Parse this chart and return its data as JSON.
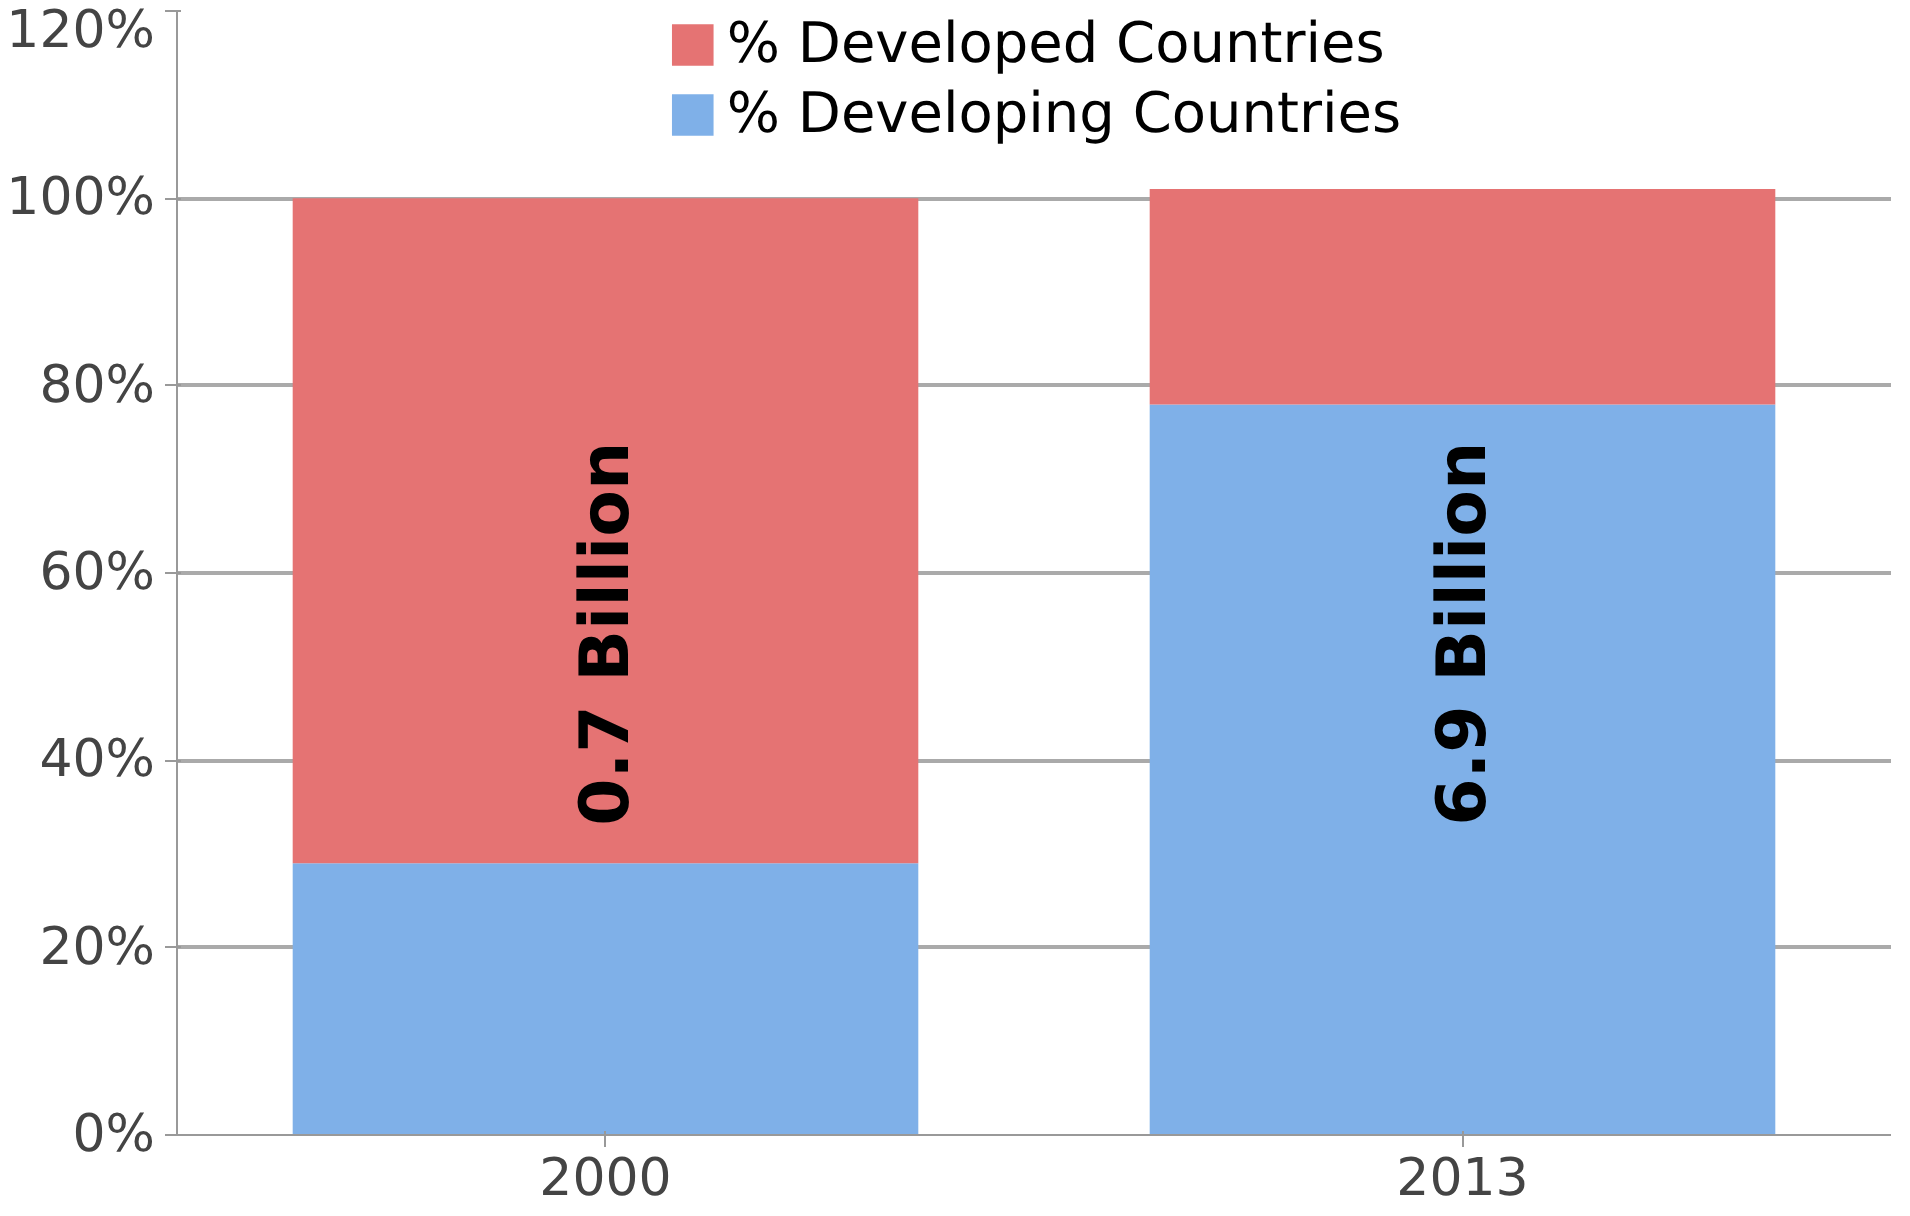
{
  "chart_data": {
    "type": "bar",
    "stacked": true,
    "categories": [
      "2000",
      "2013"
    ],
    "series": [
      {
        "name": "% Developing Countries",
        "color": "#7fb0e8",
        "values": [
          29,
          78
        ]
      },
      {
        "name": "% Developed Countries",
        "color": "#e57373",
        "values": [
          71,
          23
        ]
      }
    ],
    "ylim": [
      0,
      120
    ],
    "yticks": [
      {
        "value": 0,
        "label": "0%"
      },
      {
        "value": 20,
        "label": "20%"
      },
      {
        "value": 40,
        "label": "40%"
      },
      {
        "value": 60,
        "label": "60%"
      },
      {
        "value": 80,
        "label": "80%"
      },
      {
        "value": 100,
        "label": "100%"
      },
      {
        "value": 120,
        "label": "120%"
      }
    ],
    "grid": "y",
    "legend": "top",
    "annotations": [
      "0.7 Billion",
      "6.9 Billion"
    ]
  }
}
